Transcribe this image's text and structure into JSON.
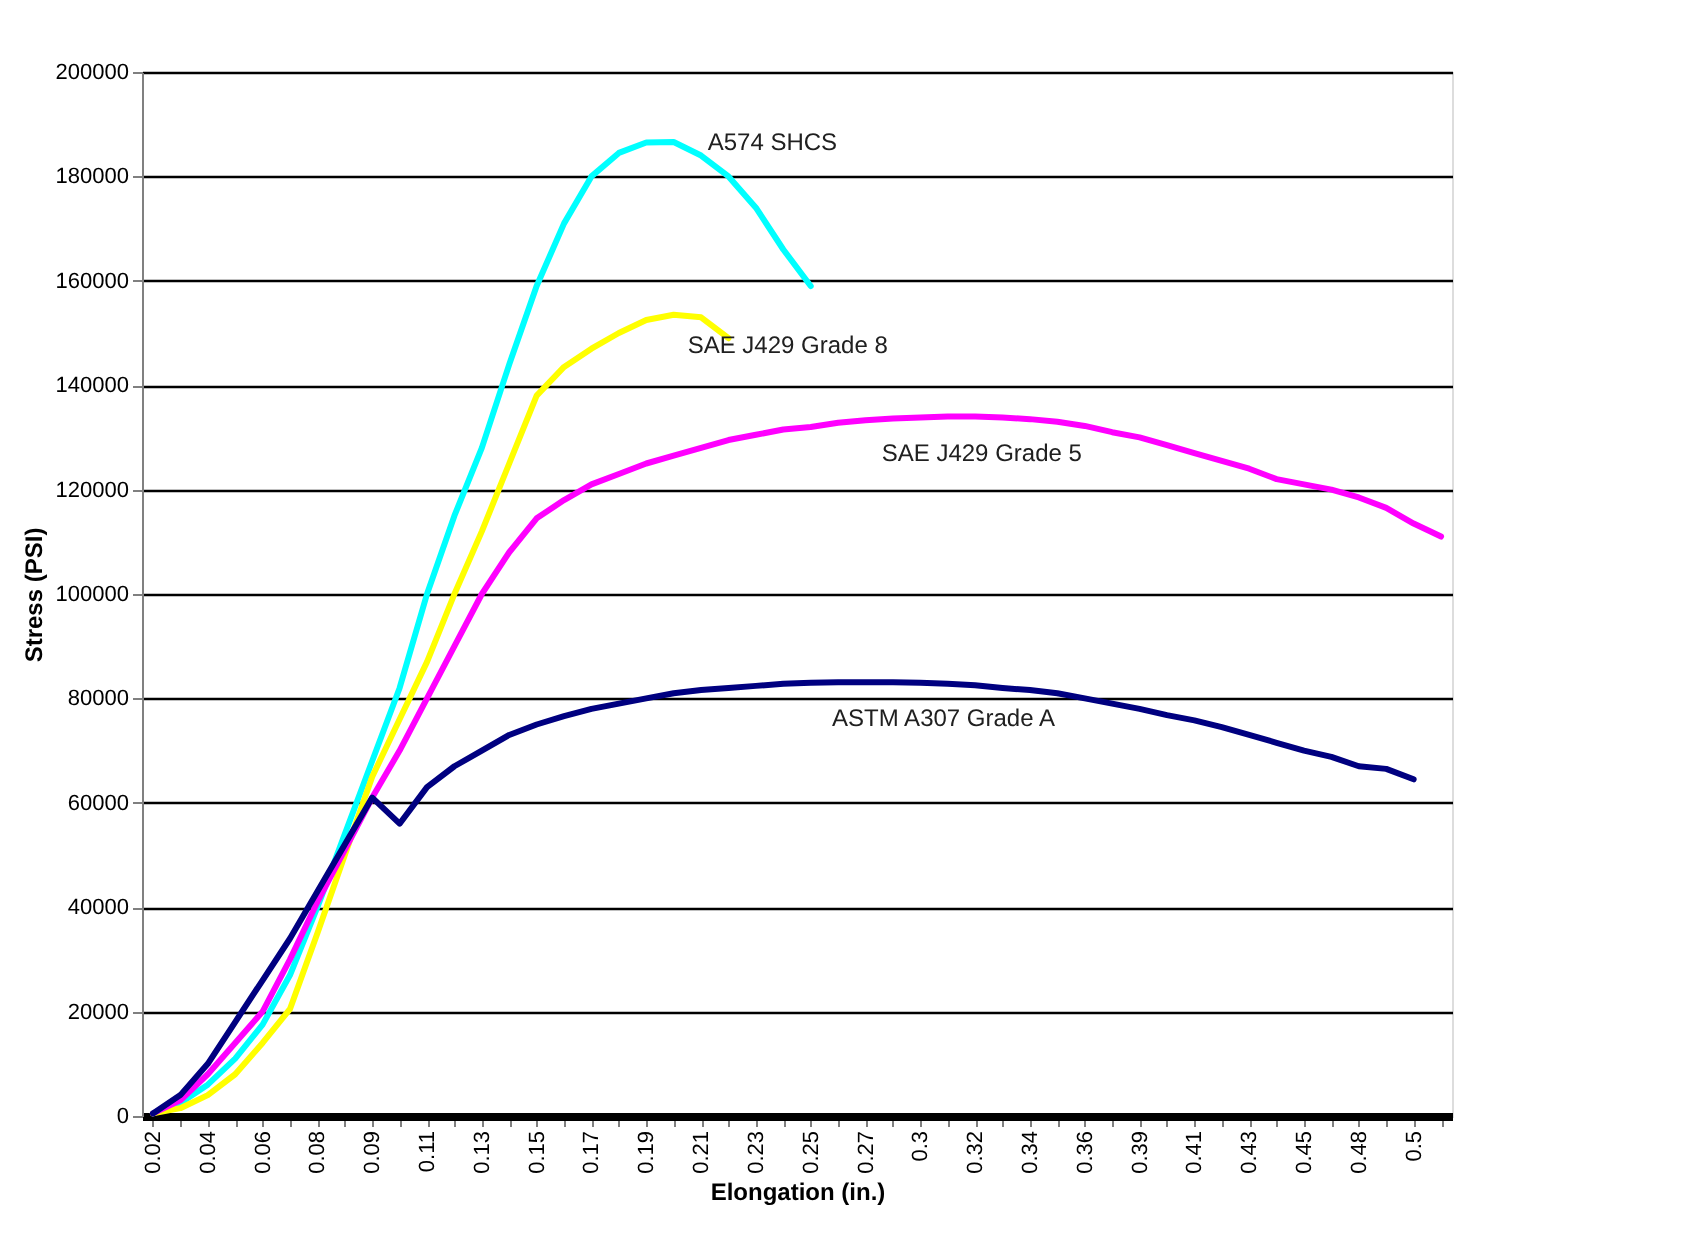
{
  "chart_data": {
    "type": "line",
    "xlabel": "Elongation (in.)",
    "ylabel": "Stress (PSI)",
    "categories": [
      "0.02",
      null,
      "0.04",
      null,
      "0.06",
      null,
      "0.08",
      null,
      "0.09",
      null,
      "0.11",
      null,
      "0.13",
      null,
      "0.15",
      null,
      "0.17",
      null,
      "0.19",
      null,
      "0.21",
      null,
      "0.23",
      null,
      "0.25",
      null,
      "0.27",
      null,
      "0.3",
      null,
      "0.32",
      null,
      "0.34",
      null,
      "0.36",
      null,
      "0.39",
      null,
      "0.41",
      null,
      "0.43",
      null,
      "0.45",
      null,
      "0.48",
      null,
      "0.5",
      null
    ],
    "series": [
      {
        "name": "A574 SHCS",
        "color": "#00ffff",
        "values": [
          500,
          2500,
          6000,
          11000,
          17500,
          27000,
          40000,
          54000,
          68000,
          82000,
          100000,
          115000,
          128000,
          144000,
          159000,
          171000,
          180000,
          184500,
          186500,
          186600,
          184000,
          180000,
          174000,
          166000,
          159000,
          null,
          null,
          null,
          null,
          null,
          null,
          null,
          null,
          null,
          null,
          null,
          null,
          null,
          null,
          null,
          null,
          null,
          null,
          null,
          null,
          null,
          null,
          null
        ]
      },
      {
        "name": "SAE J429 Grade 8",
        "color": "#ffff00",
        "values": [
          500,
          1500,
          4000,
          8000,
          14000,
          20500,
          35000,
          50000,
          65000,
          76000,
          87000,
          100000,
          112000,
          125000,
          138000,
          143500,
          147000,
          150000,
          152500,
          153500,
          153000,
          149000,
          null,
          null,
          null,
          null,
          null,
          null,
          null,
          null,
          null,
          null,
          null,
          null,
          null,
          null,
          null,
          null,
          null,
          null,
          null,
          null,
          null,
          null,
          null,
          null,
          null,
          null
        ]
      },
      {
        "name": "SAE J429 Grade 5",
        "color": "#ff00ff",
        "values": [
          500,
          3000,
          8000,
          14000,
          20000,
          30000,
          41000,
          51000,
          61000,
          70000,
          80000,
          90000,
          100000,
          108000,
          114500,
          118000,
          121000,
          123000,
          125000,
          126500,
          128000,
          129500,
          130500,
          131500,
          132000,
          132800,
          133300,
          133600,
          133800,
          134000,
          134000,
          133800,
          133500,
          133000,
          132200,
          131000,
          130000,
          128500,
          127000,
          125500,
          124000,
          122000,
          121000,
          120000,
          118500,
          116500,
          113500,
          111000
        ]
      },
      {
        "name": "ASTM A307 Grade A",
        "color": "#000080",
        "values": [
          500,
          4000,
          10000,
          18000,
          26000,
          34000,
          43000,
          52000,
          61000,
          56000,
          63000,
          67000,
          70000,
          73000,
          75000,
          76600,
          78000,
          79000,
          80000,
          81000,
          81600,
          82000,
          82400,
          82800,
          83000,
          83100,
          83100,
          83100,
          83000,
          82800,
          82500,
          82000,
          81600,
          81000,
          80000,
          79000,
          78000,
          76800,
          75800,
          74500,
          73000,
          71500,
          70000,
          68800,
          67000,
          66500,
          64500,
          null
        ]
      }
    ],
    "ylim": [
      0,
      200000
    ],
    "yticks": [
      0,
      20000,
      40000,
      60000,
      80000,
      100000,
      120000,
      140000,
      160000,
      180000,
      200000
    ],
    "grid": "y",
    "marker": "none",
    "line_style": "solid"
  }
}
